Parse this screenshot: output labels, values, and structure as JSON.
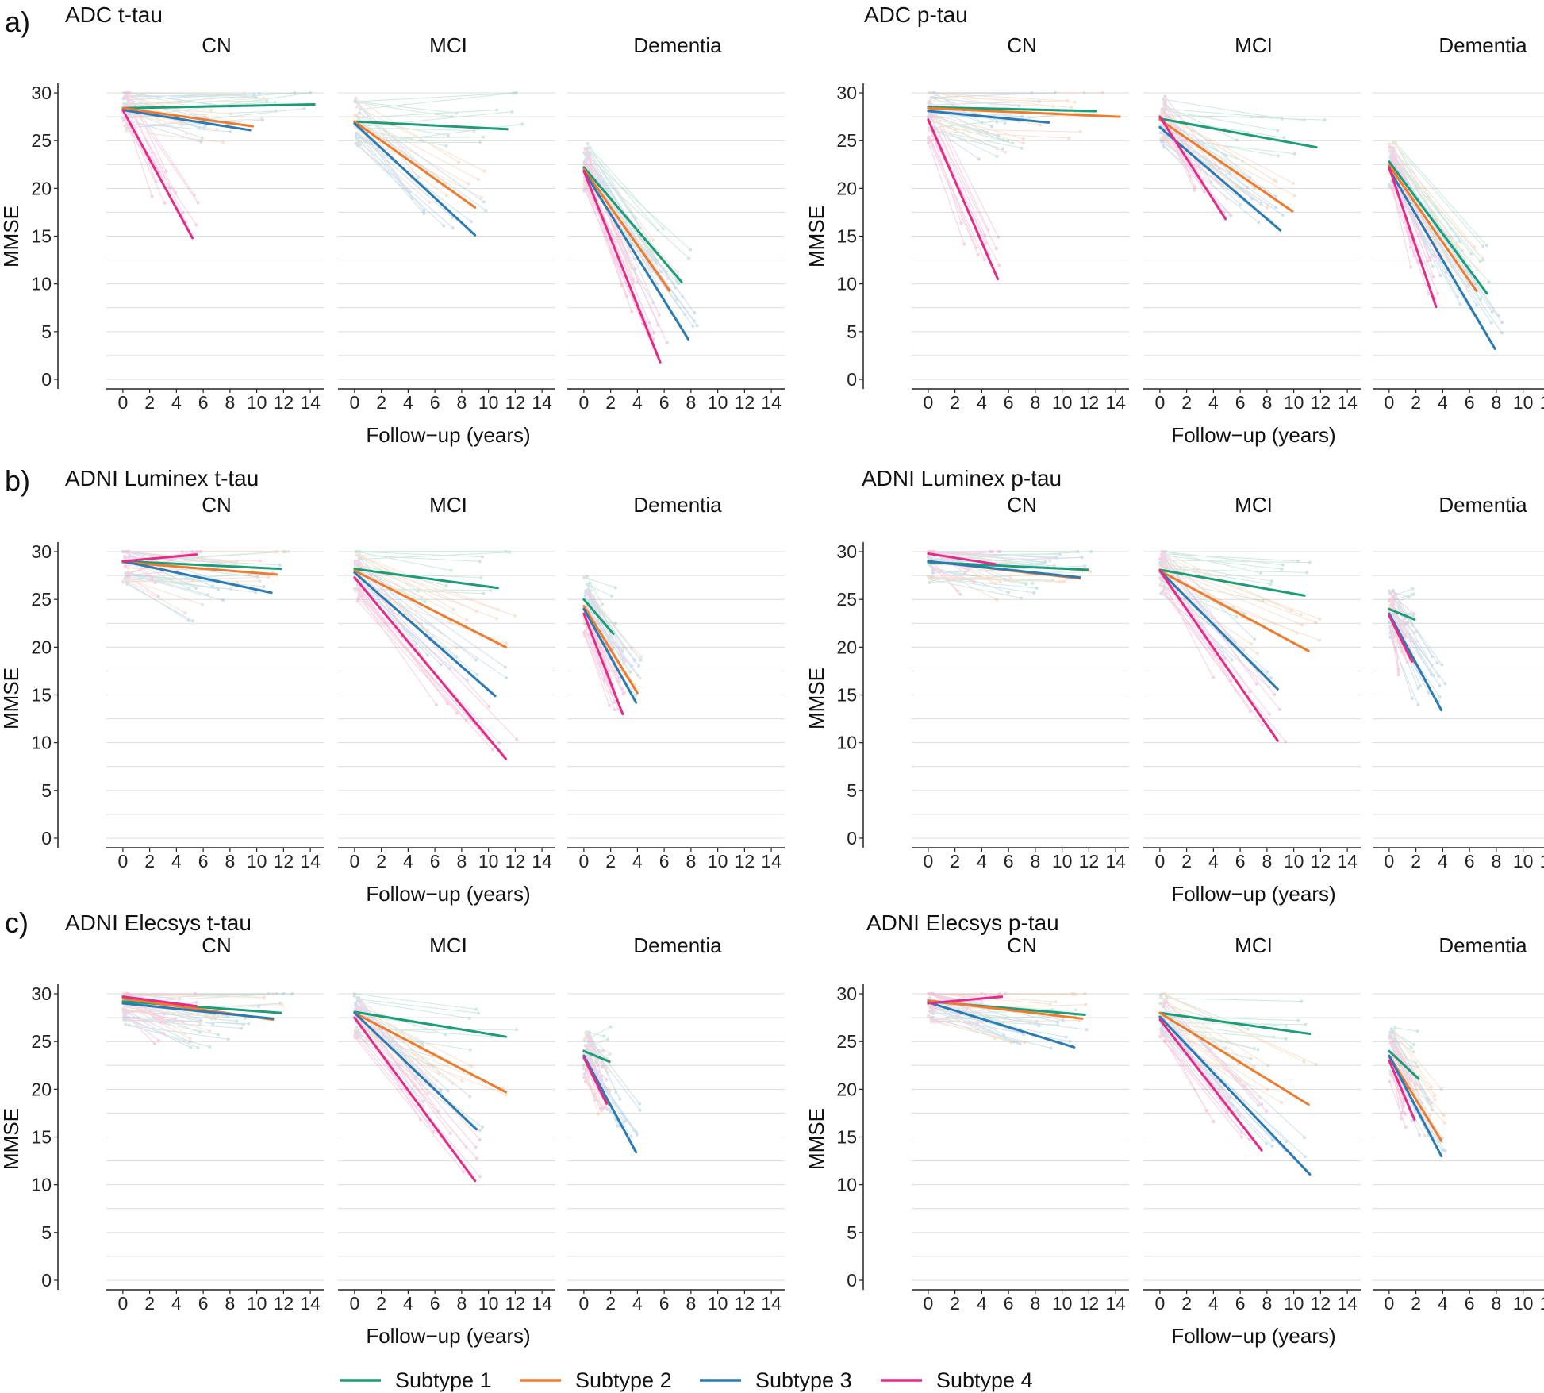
{
  "chart_data": {
    "type": "line",
    "xlabel": "Follow−up (years)",
    "ylabel": "MMSE",
    "x_ticks": [
      0,
      2,
      4,
      6,
      8,
      10,
      12,
      14
    ],
    "y_ticks": [
      0,
      5,
      10,
      15,
      20,
      25,
      30
    ],
    "xlim": [
      -1,
      15
    ],
    "ylim": [
      -1,
      31
    ],
    "facets": [
      "CN",
      "MCI",
      "Dementia"
    ],
    "legend": [
      {
        "name": "Subtype 1",
        "color": "#1b9e77"
      },
      {
        "name": "Subtype 2",
        "color": "#f07b2c"
      },
      {
        "name": "Subtype 3",
        "color": "#2a7ab5"
      },
      {
        "name": "Subtype 4",
        "color": "#e7298a"
      }
    ],
    "panels": [
      {
        "tag": "a)",
        "title": "ADC t-tau",
        "facets": {
          "CN": [
            [
              0,
              28.4,
              14.3,
              28.8
            ],
            [
              0,
              28.4,
              9.7,
              26.5
            ],
            [
              0,
              28.2,
              9.5,
              26.1
            ],
            [
              0,
              28.2,
              5.2,
              14.8
            ]
          ],
          "MCI": [
            [
              0,
              27.0,
              11.4,
              26.2
            ],
            [
              0,
              27.0,
              9.0,
              18.0
            ],
            [
              0,
              26.8,
              9.0,
              15.1
            ],
            null
          ],
          "Dementia": [
            [
              0,
              22.2,
              7.3,
              10.2
            ],
            [
              0,
              22.0,
              6.4,
              9.3
            ],
            [
              0,
              21.8,
              7.8,
              4.2
            ],
            [
              0,
              21.8,
              5.7,
              1.8
            ]
          ]
        }
      },
      {
        "tag": "",
        "title": "ADC p-tau",
        "facets": {
          "CN": [
            [
              0,
              28.5,
              12.5,
              28.1
            ],
            [
              0,
              28.4,
              14.3,
              27.5
            ],
            [
              0,
              28.1,
              9.0,
              26.9
            ],
            [
              0,
              27.2,
              5.2,
              10.5
            ]
          ],
          "MCI": [
            [
              0,
              27.3,
              11.7,
              24.3
            ],
            [
              0,
              27.2,
              9.9,
              17.6
            ],
            [
              0,
              26.4,
              9.0,
              15.6
            ],
            [
              0,
              27.5,
              4.9,
              16.8
            ]
          ],
          "Dementia": [
            [
              0,
              22.8,
              7.3,
              9.0
            ],
            [
              0,
              22.4,
              6.5,
              9.3
            ],
            [
              0,
              22.0,
              7.9,
              3.2
            ],
            [
              0,
              22.2,
              3.5,
              7.6
            ]
          ]
        }
      },
      {
        "tag": "b)",
        "title": "ADNI Luminex t-tau",
        "facets": {
          "CN": [
            [
              0,
              29.0,
              11.8,
              28.2
            ],
            [
              0,
              28.9,
              11.5,
              27.6
            ],
            [
              0,
              29.0,
              11.1,
              25.7
            ],
            [
              0,
              29.0,
              5.5,
              29.7
            ]
          ],
          "MCI": [
            [
              0,
              28.2,
              10.7,
              26.2
            ],
            [
              0,
              28.0,
              11.3,
              20.0
            ],
            [
              0,
              27.8,
              10.5,
              14.9
            ],
            [
              0,
              27.3,
              11.3,
              8.3
            ]
          ],
          "Dementia": [
            [
              0,
              25.0,
              2.2,
              21.4
            ],
            [
              0,
              24.3,
              4.0,
              15.2
            ],
            [
              0,
              24.0,
              3.9,
              14.2
            ],
            [
              0,
              23.5,
              2.9,
              13.0
            ]
          ]
        }
      },
      {
        "tag": "",
        "title": "ADNI Luminex p-tau",
        "facets": {
          "CN": [
            [
              0,
              28.9,
              11.9,
              28.1
            ],
            [
              0,
              29.0,
              11.3,
              27.2
            ],
            [
              0,
              29.0,
              11.3,
              27.3
            ],
            [
              0,
              29.8,
              5.0,
              28.7
            ]
          ],
          "MCI": [
            [
              0,
              28.1,
              10.8,
              25.4
            ],
            [
              0,
              28.0,
              11.1,
              19.6
            ],
            [
              0,
              28.0,
              8.8,
              15.6
            ],
            [
              0,
              28.0,
              8.8,
              10.2
            ]
          ],
          "Dementia": [
            [
              0,
              24.0,
              1.9,
              22.9
            ],
            [
              0,
              23.5,
              1.9,
              18.4
            ],
            [
              0,
              23.5,
              3.9,
              13.4
            ],
            [
              0,
              23.3,
              1.7,
              18.5
            ]
          ]
        }
      },
      {
        "tag": "c)",
        "title": "ADNI Elecsys t-tau",
        "facets": {
          "CN": [
            [
              0,
              29.2,
              11.8,
              28.0
            ],
            [
              0,
              29.5,
              11.2,
              27.3
            ],
            [
              0,
              29.0,
              11.2,
              27.4
            ],
            [
              0,
              29.7,
              5.5,
              28.7
            ]
          ],
          "MCI": [
            [
              0,
              28.1,
              11.3,
              25.5
            ],
            [
              0,
              28.0,
              11.3,
              19.7
            ],
            [
              0,
              28.0,
              9.1,
              15.8
            ],
            [
              0,
              27.5,
              9.0,
              10.4
            ]
          ],
          "Dementia": [
            [
              0,
              24.0,
              1.9,
              22.9
            ],
            [
              0,
              23.5,
              1.9,
              18.4
            ],
            [
              0,
              23.5,
              3.9,
              13.4
            ],
            [
              0,
              23.3,
              1.7,
              18.5
            ]
          ]
        }
      },
      {
        "tag": "",
        "title": "ADNI Elecsys p-tau",
        "facets": {
          "CN": [
            [
              0,
              29.2,
              11.7,
              27.8
            ],
            [
              0,
              29.3,
              11.5,
              27.4
            ],
            [
              0,
              29.1,
              10.9,
              24.4
            ],
            [
              0,
              29.0,
              5.5,
              29.7
            ]
          ],
          "MCI": [
            [
              0,
              28.0,
              11.2,
              25.8
            ],
            [
              0,
              28.0,
              11.1,
              18.4
            ],
            [
              0,
              27.6,
              11.2,
              11.1
            ],
            [
              0,
              27.3,
              7.6,
              13.6
            ]
          ],
          "Dementia": [
            [
              0,
              24.0,
              2.2,
              21.1
            ],
            [
              0,
              23.5,
              3.9,
              14.6
            ],
            [
              0,
              23.5,
              3.9,
              13.0
            ],
            [
              0,
              23.0,
              1.9,
              16.8
            ]
          ]
        }
      }
    ]
  }
}
